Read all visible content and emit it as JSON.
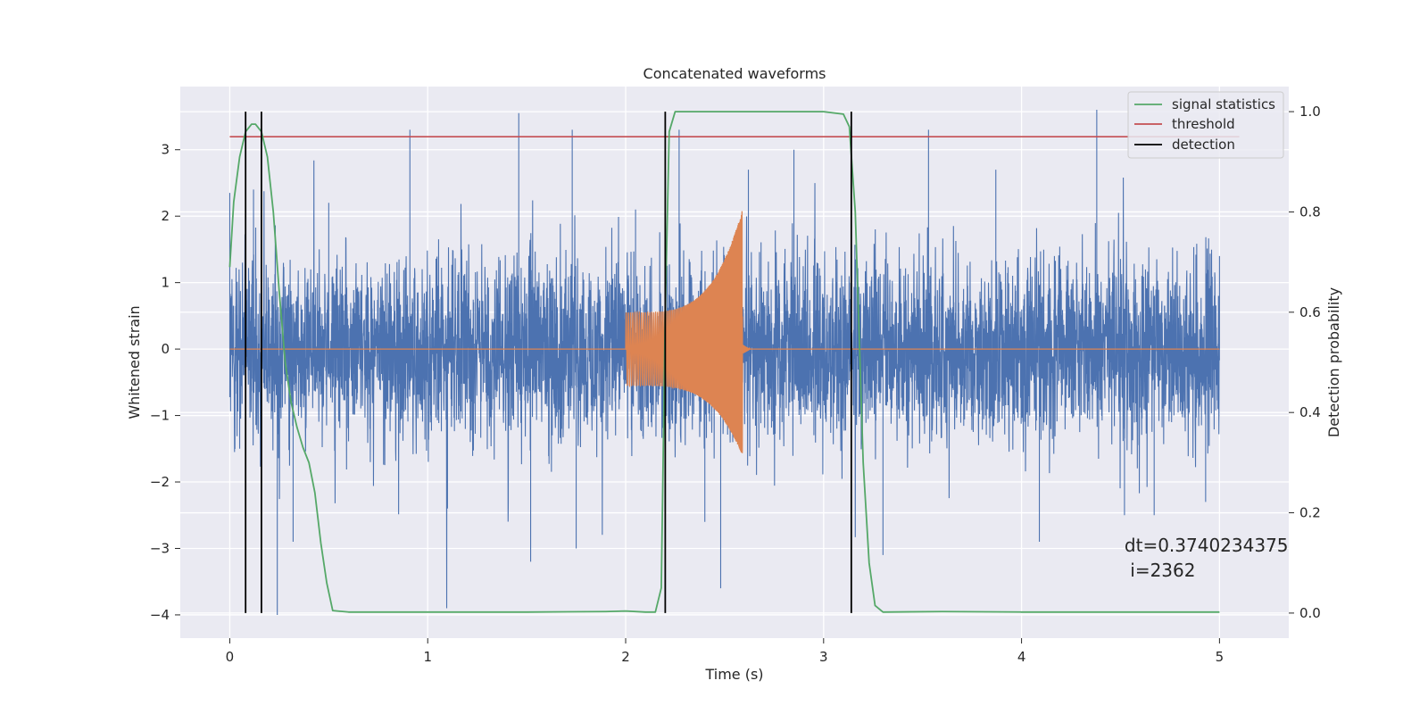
{
  "chart_data": {
    "type": "line",
    "title": "Concatenated waveforms",
    "xlabel": "Time (s)",
    "ylabel": "Whitened strain",
    "y2label": "Detection probability",
    "xlim": [
      -0.25,
      5.35
    ],
    "ylim": [
      -4.35,
      3.95
    ],
    "y2lim": [
      -0.05,
      1.05
    ],
    "x_ticks": [
      0,
      1,
      2,
      3,
      4,
      5
    ],
    "x_tick_labels": [
      "0",
      "1",
      "2",
      "3",
      "4",
      "5"
    ],
    "y_ticks": [
      -4,
      -3,
      -2,
      -1,
      0,
      1,
      2,
      3
    ],
    "y_tick_labels": [
      "−4",
      "−3",
      "−2",
      "−1",
      "0",
      "1",
      "2",
      "3"
    ],
    "y2_ticks": [
      0.0,
      0.2,
      0.4,
      0.6,
      0.8,
      1.0
    ],
    "y2_tick_labels": [
      "0.0",
      "0.2",
      "0.4",
      "0.6",
      "0.8",
      "1.0"
    ],
    "grid": true,
    "legend_position": "top-right",
    "background_color": "#eaeaf2",
    "series": [
      {
        "kind": "noise",
        "color": "#4c72b0",
        "x_range": [
          0,
          5
        ],
        "approx_envelope": [
          -3.9,
          3.6
        ],
        "values_sample": [
          [
            0.0,
            2.35
          ],
          [
            0.05,
            -1.5
          ],
          [
            0.12,
            2.4
          ],
          [
            0.24,
            -4.0
          ],
          [
            0.32,
            -2.9
          ],
          [
            0.5,
            2.2
          ],
          [
            0.91,
            3.3
          ],
          [
            1.1,
            -2.4
          ],
          [
            1.46,
            3.55
          ],
          [
            1.52,
            -3.2
          ],
          [
            1.73,
            3.3
          ],
          [
            1.75,
            -3.0
          ],
          [
            2.05,
            2.1
          ],
          [
            2.27,
            3.3
          ],
          [
            2.4,
            -2.6
          ],
          [
            2.48,
            -3.6
          ],
          [
            2.62,
            2.7
          ],
          [
            2.85,
            3.0
          ],
          [
            3.3,
            -3.1
          ],
          [
            3.53,
            3.3
          ],
          [
            3.87,
            2.7
          ],
          [
            4.09,
            -2.9
          ],
          [
            4.38,
            3.6
          ],
          [
            4.52,
            -2.5
          ],
          [
            4.67,
            -2.5
          ],
          [
            4.93,
            -2.3
          ],
          [
            5.0,
            1.4
          ]
        ]
      },
      {
        "kind": "chirp",
        "color": "#dd8452",
        "x_range": [
          0,
          5
        ],
        "chirp_start": 2.0,
        "chirp_end": 2.59,
        "envelope_start": 0.55,
        "envelope_end": 2.1,
        "envelope_end_low": -1.6,
        "values_sample": [
          [
            0.0,
            0.0
          ],
          [
            2.0,
            0.55
          ],
          [
            2.2,
            0.62
          ],
          [
            2.4,
            0.85
          ],
          [
            2.5,
            1.2
          ],
          [
            2.55,
            1.6
          ],
          [
            2.59,
            2.1
          ],
          [
            2.6,
            0.0
          ],
          [
            5.0,
            0.0
          ]
        ]
      },
      {
        "name": "signal statistics",
        "color": "#55a868",
        "axis": "right",
        "x": [
          0.0,
          0.02,
          0.05,
          0.08,
          0.11,
          0.13,
          0.16,
          0.19,
          0.22,
          0.25,
          0.28,
          0.31,
          0.34,
          0.37,
          0.4,
          0.43,
          0.46,
          0.49,
          0.52,
          0.6,
          1.0,
          1.5,
          1.9,
          2.0,
          2.1,
          2.15,
          2.18,
          2.2,
          2.22,
          2.25,
          2.35,
          2.6,
          3.0,
          3.1,
          3.13,
          3.16,
          3.2,
          3.23,
          3.26,
          3.3,
          3.6,
          4.0,
          5.0
        ],
        "y": [
          0.69,
          0.82,
          0.91,
          0.96,
          0.975,
          0.975,
          0.96,
          0.91,
          0.8,
          0.64,
          0.5,
          0.42,
          0.37,
          0.33,
          0.3,
          0.24,
          0.14,
          0.06,
          0.005,
          0.002,
          0.002,
          0.002,
          0.003,
          0.004,
          0.002,
          0.002,
          0.05,
          0.6,
          0.96,
          1.0,
          1.0,
          1.0,
          1.0,
          0.995,
          0.97,
          0.8,
          0.3,
          0.1,
          0.015,
          0.002,
          0.003,
          0.002,
          0.002
        ]
      },
      {
        "name": "threshold",
        "color": "#c44e52",
        "axis": "right",
        "x": [
          0.0,
          5.1
        ],
        "y": [
          0.95,
          0.95
        ]
      }
    ],
    "detections": {
      "name": "detection",
      "color": "#000000",
      "axis": "right",
      "x": [
        0.08,
        0.16,
        2.2,
        3.14
      ],
      "y_range": [
        0.0,
        1.0
      ]
    },
    "legend": [
      "signal statistics",
      "threshold",
      "detection"
    ],
    "annotations": [
      {
        "text": "dt=0.3740234375",
        "x": 4.52,
        "y": -3.05
      },
      {
        "text": " i=2362",
        "x": 4.52,
        "y": -3.42
      }
    ]
  }
}
